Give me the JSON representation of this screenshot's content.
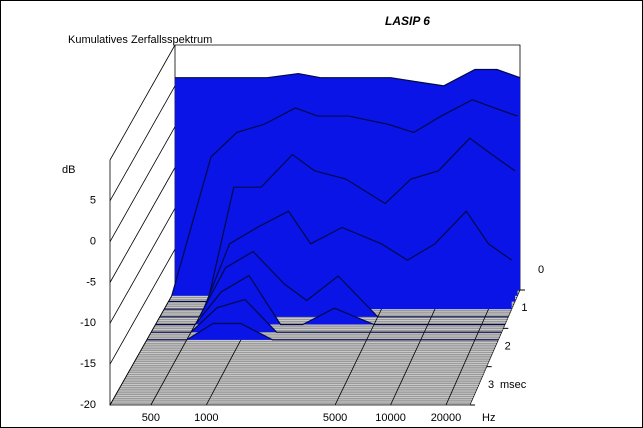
{
  "chart_data": {
    "type": "waterfall3d",
    "title": "Kumulatives Zerfallsspektrum",
    "subtitle": "LASIP 6",
    "y_label": "dB",
    "x_label": "Hz",
    "z_label": "msec",
    "x": [
      300,
      500,
      700,
      1000,
      1500,
      2000,
      3000,
      5000,
      7000,
      10000,
      15000,
      20000,
      27000
    ],
    "z": [
      0,
      0.15,
      0.3,
      0.5,
      0.7,
      0.9,
      1.1,
      1.3
    ],
    "series": [
      {
        "color": "#0a14e6",
        "values": [
          6,
          6,
          6,
          6,
          6.5,
          6,
          6,
          6,
          5.5,
          5,
          7,
          7,
          6
        ]
      },
      {
        "color": "#0a14e6",
        "values": [
          -20,
          -3,
          0,
          1,
          3,
          2,
          2,
          1,
          0,
          2,
          4,
          3,
          2
        ]
      },
      {
        "color": "#0a14e6",
        "values": [
          -20,
          -20,
          -6,
          -6,
          -2,
          -4,
          -5,
          -8,
          -5,
          -4,
          0,
          -2,
          -4
        ]
      },
      {
        "color": "#0a14e6",
        "values": [
          -20,
          -20,
          -12,
          -10,
          -8,
          -12,
          -10,
          -12,
          -14,
          -12,
          -8,
          -12,
          -14
        ]
      },
      {
        "color": "#0a14e6",
        "values": [
          -20,
          -20,
          -14,
          -12,
          -16,
          -18,
          -15,
          -20,
          -20,
          -20,
          -20,
          -20,
          -20
        ]
      },
      {
        "color": "#0a14e6",
        "values": [
          -20,
          -20,
          -16,
          -14,
          -20,
          -20,
          -18,
          -20,
          -20,
          -20,
          -20,
          -20,
          -20
        ]
      },
      {
        "color": "#0a14e6",
        "values": [
          -20,
          -20,
          -17,
          -16,
          -20,
          -20,
          -20,
          -20,
          -20,
          -20,
          -20,
          -20,
          -20
        ]
      },
      {
        "color": "#0a14e6",
        "values": [
          -20,
          -20,
          -18,
          -18,
          -20,
          -20,
          -20,
          -20,
          -20,
          -20,
          -20,
          -20,
          -20
        ]
      }
    ],
    "xlim": [
      300,
      27000
    ],
    "xticks": [
      500,
      1000,
      5000,
      10000,
      20000
    ],
    "log_x": true,
    "ylim": [
      -20,
      10
    ],
    "yticks": [
      5,
      0,
      -5,
      -10,
      -15,
      -20
    ],
    "zlim": [
      0,
      3
    ],
    "zticks": [
      0,
      1,
      2,
      3
    ]
  }
}
